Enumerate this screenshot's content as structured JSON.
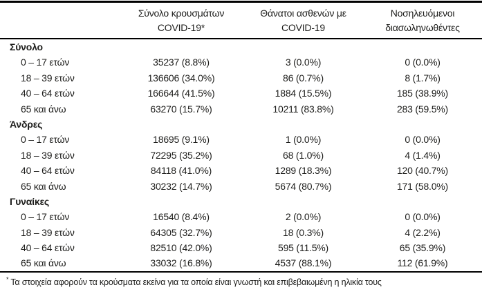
{
  "table": {
    "columns": [
      {
        "line1": "",
        "line2": ""
      },
      {
        "line1": "Σύνολο κρουσμάτων",
        "line2": "COVID-19*"
      },
      {
        "line1": "Θάνατοι ασθενών με",
        "line2": "COVID-19"
      },
      {
        "line1": "Νοσηλευόμενοι",
        "line2": "διασωληνωθέντες"
      }
    ],
    "sections": [
      {
        "label": "Σύνολο",
        "rows": [
          {
            "label": "0 – 17 ετών",
            "cases": "35237 (8.8%)",
            "deaths": "3 (0.0%)",
            "intubated": "0 (0.0%)"
          },
          {
            "label": "18 – 39 ετών",
            "cases": "136606 (34.0%)",
            "deaths": "86 (0.7%)",
            "intubated": "8 (1.7%)"
          },
          {
            "label": "40 – 64 ετών",
            "cases": "166644 (41.5%)",
            "deaths": "1884 (15.5%)",
            "intubated": "185 (38.9%)"
          },
          {
            "label": "65 και άνω",
            "cases": "63270 (15.7%)",
            "deaths": "10211 (83.8%)",
            "intubated": "283 (59.5%)"
          }
        ]
      },
      {
        "label": "Άνδρες",
        "rows": [
          {
            "label": "0 – 17 ετών",
            "cases": "18695 (9.1%)",
            "deaths": "1 (0.0%)",
            "intubated": "0 (0.0%)"
          },
          {
            "label": "18 – 39 ετών",
            "cases": "72295 (35.2%)",
            "deaths": "68 (1.0%)",
            "intubated": "4 (1.4%)"
          },
          {
            "label": "40 – 64 ετών",
            "cases": "84118 (41.0%)",
            "deaths": "1289 (18.3%)",
            "intubated": "120 (40.7%)"
          },
          {
            "label": "65 και άνω",
            "cases": "30232 (14.7%)",
            "deaths": "5674 (80.7%)",
            "intubated": "171 (58.0%)"
          }
        ]
      },
      {
        "label": "Γυναίκες",
        "rows": [
          {
            "label": "0 – 17 ετών",
            "cases": "16540 (8.4%)",
            "deaths": "2 (0.0%)",
            "intubated": "0 (0.0%)"
          },
          {
            "label": "18 – 39 ετών",
            "cases": "64305 (32.7%)",
            "deaths": "18 (0.3%)",
            "intubated": "4 (2.2%)"
          },
          {
            "label": "40 – 64 ετών",
            "cases": "82510 (42.0%)",
            "deaths": "595 (11.5%)",
            "intubated": "65 (35.9%)"
          },
          {
            "label": "65 και άνω",
            "cases": "33032 (16.8%)",
            "deaths": "4537 (88.1%)",
            "intubated": "112 (61.9%)"
          }
        ]
      }
    ],
    "footnote": {
      "marker": "*",
      "text": "Τα στοιχεία αφορούν τα κρούσματα εκείνα για τα οποία είναι γνωστή και επιβεβαιωμένη η ηλικία τους"
    }
  },
  "colors": {
    "text": "#1d1d1b",
    "rule": "#000000",
    "background": "#ffffff"
  }
}
